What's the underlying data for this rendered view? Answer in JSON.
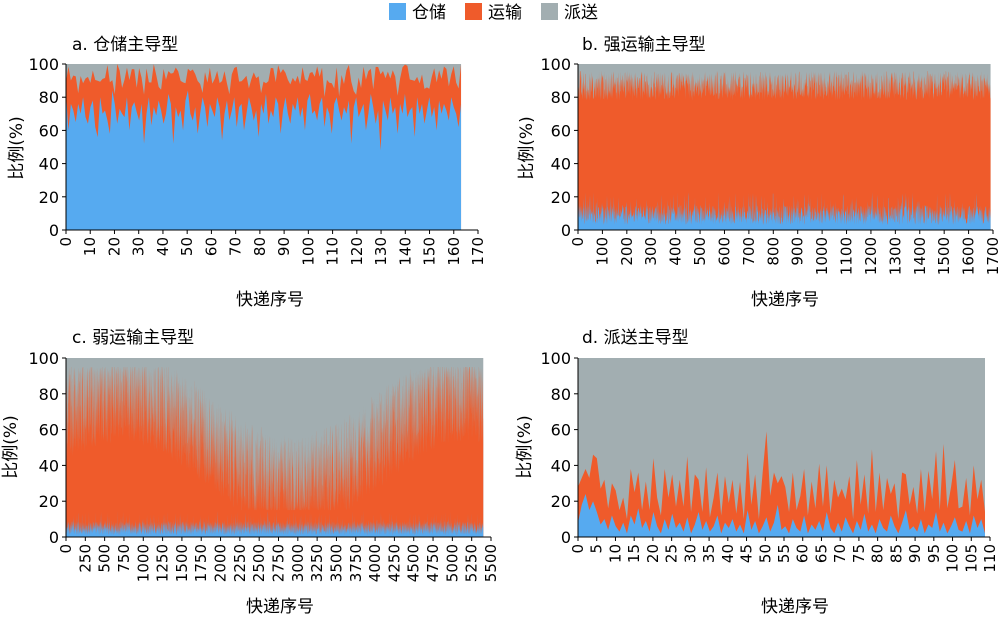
{
  "legend": {
    "items": [
      {
        "label": "仓储",
        "color": "#56aaf0"
      },
      {
        "label": "运输",
        "color": "#ef5b2b"
      },
      {
        "label": "派送",
        "color": "#a2aeb1"
      }
    ]
  },
  "chart_data": [
    {
      "type": "area",
      "stacked": true,
      "title": "a. 仓储主导型",
      "xlabel": "快递序号",
      "ylabel": "比例(%)",
      "xlim": [
        0,
        170
      ],
      "ylim": [
        0,
        100
      ],
      "xticks": [
        0,
        10,
        20,
        30,
        40,
        50,
        60,
        70,
        80,
        90,
        100,
        110,
        120,
        130,
        140,
        150,
        160,
        170
      ],
      "yticks": [
        0,
        20,
        40,
        60,
        80,
        100
      ],
      "n": 163,
      "series": [
        {
          "name": "仓储",
          "color": "#56aaf0",
          "values_note": "approx. fluctuates 48–90, mostly 65–85",
          "values": [
            82,
            60,
            76,
            72,
            65,
            76,
            70,
            80,
            68,
            64,
            74,
            78,
            62,
            56,
            80,
            70,
            72,
            66,
            58,
            84,
            76,
            64,
            73,
            70,
            68,
            80,
            60,
            74,
            77,
            71,
            66,
            76,
            52,
            70,
            80,
            63,
            74,
            69,
            78,
            72,
            64,
            70,
            82,
            76,
            52,
            74,
            68,
            72,
            60,
            78,
            84,
            70,
            66,
            74,
            58,
            70,
            80,
            74,
            62,
            76,
            72,
            68,
            80,
            74,
            54,
            70,
            78,
            66,
            72,
            80,
            62,
            74,
            76,
            60,
            70,
            80,
            74,
            66,
            72,
            56,
            76,
            70,
            82,
            64,
            72,
            68,
            80,
            76,
            58,
            72,
            80,
            70,
            64,
            76,
            72,
            80,
            68,
            74,
            60,
            78,
            82,
            70,
            72,
            66,
            76,
            80,
            62,
            74,
            70,
            58,
            76,
            80,
            72,
            66,
            74,
            70,
            78,
            52,
            74,
            80,
            68,
            72,
            76,
            60,
            70,
            82,
            74,
            64,
            72,
            48,
            78,
            72,
            66,
            80,
            70,
            74,
            58,
            76,
            70,
            82,
            68,
            72,
            74,
            56,
            80,
            70,
            76,
            64,
            72,
            80,
            68,
            74,
            60,
            78,
            70,
            76,
            72,
            66,
            80,
            74,
            70,
            62,
            76
          ]
        },
        {
          "name": "运输",
          "color": "#ef5b2b",
          "values": []
        },
        {
          "name": "派送",
          "color": "#a2aeb1",
          "values": []
        }
      ]
    },
    {
      "type": "area",
      "stacked": true,
      "title": "b. 强运输主导型",
      "xlabel": "快递序号",
      "ylabel": "比例(%)",
      "xlim": [
        0,
        1700
      ],
      "ylim": [
        0,
        100
      ],
      "xticks": [
        0,
        100,
        200,
        300,
        400,
        500,
        600,
        700,
        800,
        900,
        1000,
        1100,
        1200,
        1300,
        1400,
        1500,
        1600,
        1700
      ],
      "yticks": [
        0,
        20,
        40,
        60,
        80,
        100
      ],
      "n": 1690,
      "series": [
        {
          "name": "仓储",
          "color": "#56aaf0",
          "values_note": "approx. 3–18"
        },
        {
          "name": "运输",
          "color": "#ef5b2b",
          "values_note": "approx. 70–90"
        },
        {
          "name": "派送",
          "color": "#a2aeb1",
          "values_note": "remainder to 100"
        }
      ]
    },
    {
      "type": "area",
      "stacked": true,
      "title": "c. 弱运输主导型",
      "xlabel": "快递序号",
      "ylabel": "比例(%)",
      "xlim": [
        0,
        5500
      ],
      "ylim": [
        0,
        100
      ],
      "xticks": [
        0,
        250,
        500,
        750,
        1000,
        1250,
        1500,
        1750,
        2000,
        2250,
        2500,
        2750,
        3000,
        3250,
        3500,
        3750,
        4000,
        4250,
        4500,
        4750,
        5000,
        5250,
        5500
      ],
      "yticks": [
        0,
        20,
        40,
        60,
        80,
        100
      ],
      "n": 5400,
      "series": [
        {
          "name": "仓储",
          "color": "#56aaf0",
          "values_note": "approx. 2–12"
        },
        {
          "name": "运输",
          "color": "#ef5b2b",
          "values_note": "approx. 20–80"
        },
        {
          "name": "派送",
          "color": "#a2aeb1",
          "values_note": "remainder to 100"
        }
      ]
    },
    {
      "type": "area",
      "stacked": true,
      "title": "d. 派送主导型",
      "xlabel": "快递序号",
      "ylabel": "比例(%)",
      "xlim": [
        0,
        110
      ],
      "ylim": [
        0,
        100
      ],
      "xticks": [
        0,
        5,
        10,
        15,
        20,
        25,
        30,
        35,
        40,
        45,
        50,
        55,
        60,
        65,
        70,
        75,
        80,
        85,
        90,
        95,
        100,
        105,
        110
      ],
      "yticks": [
        0,
        20,
        40,
        60,
        80,
        100
      ],
      "n": 109,
      "series": [
        {
          "name": "仓储",
          "color": "#56aaf0",
          "values": [
            8,
            18,
            24,
            15,
            20,
            14,
            7,
            10,
            4,
            12,
            6,
            3,
            8,
            2,
            12,
            7,
            16,
            5,
            9,
            3,
            14,
            6,
            2,
            10,
            4,
            13,
            5,
            8,
            3,
            11,
            2,
            7,
            14,
            4,
            9,
            3,
            6,
            12,
            2,
            8,
            5,
            10,
            3,
            7,
            2,
            15,
            4,
            9,
            2,
            6,
            11,
            3,
            8,
            18,
            4,
            6,
            2,
            10,
            5,
            3,
            12,
            2,
            7,
            4,
            9,
            3,
            14,
            5,
            2,
            8,
            3,
            11,
            6,
            2,
            9,
            4,
            13,
            3,
            7,
            2,
            10,
            5,
            3,
            12,
            6,
            2,
            8,
            15,
            4,
            6,
            3,
            10,
            2,
            7,
            5,
            14,
            3,
            8,
            2,
            6,
            11,
            4,
            3,
            9,
            2,
            12,
            5,
            10,
            2
          ]
        },
        {
          "name": "运输",
          "color": "#ef5b2b",
          "values": [
            20,
            15,
            14,
            18,
            26,
            30,
            20,
            22,
            12,
            18,
            20,
            12,
            14,
            8,
            26,
            18,
            20,
            10,
            22,
            12,
            30,
            16,
            10,
            28,
            18,
            22,
            12,
            24,
            14,
            34,
            12,
            28,
            18,
            10,
            30,
            8,
            16,
            24,
            10,
            26,
            14,
            22,
            10,
            24,
            8,
            32,
            14,
            26,
            8,
            30,
            48,
            20,
            28,
            12,
            30,
            22,
            12,
            26,
            10,
            20,
            26,
            10,
            24,
            12,
            32,
            14,
            26,
            8,
            30,
            14,
            24,
            10,
            28,
            8,
            34,
            14,
            22,
            10,
            42,
            12,
            26,
            10,
            30,
            12,
            24,
            8,
            28,
            20,
            14,
            22,
            10,
            28,
            12,
            30,
            16,
            34,
            12,
            44,
            14,
            22,
            32,
            12,
            14,
            24,
            10,
            28,
            16,
            22,
            12
          ]
        },
        {
          "name": "派送",
          "color": "#a2aeb1",
          "values": []
        }
      ]
    }
  ],
  "panels_text": {
    "a": {
      "title": "a. 仓储主导型",
      "xlabel": "快递序号",
      "ylabel": "比例(%)"
    },
    "b": {
      "title": "b. 强运输主导型",
      "xlabel": "快递序号",
      "ylabel": "比例(%)"
    },
    "c": {
      "title": "c. 弱运输主导型",
      "xlabel": "快递序号",
      "ylabel": "比例(%)"
    },
    "d": {
      "title": "d. 派送主导型",
      "xlabel": "快递序号",
      "ylabel": "比例(%)"
    }
  }
}
